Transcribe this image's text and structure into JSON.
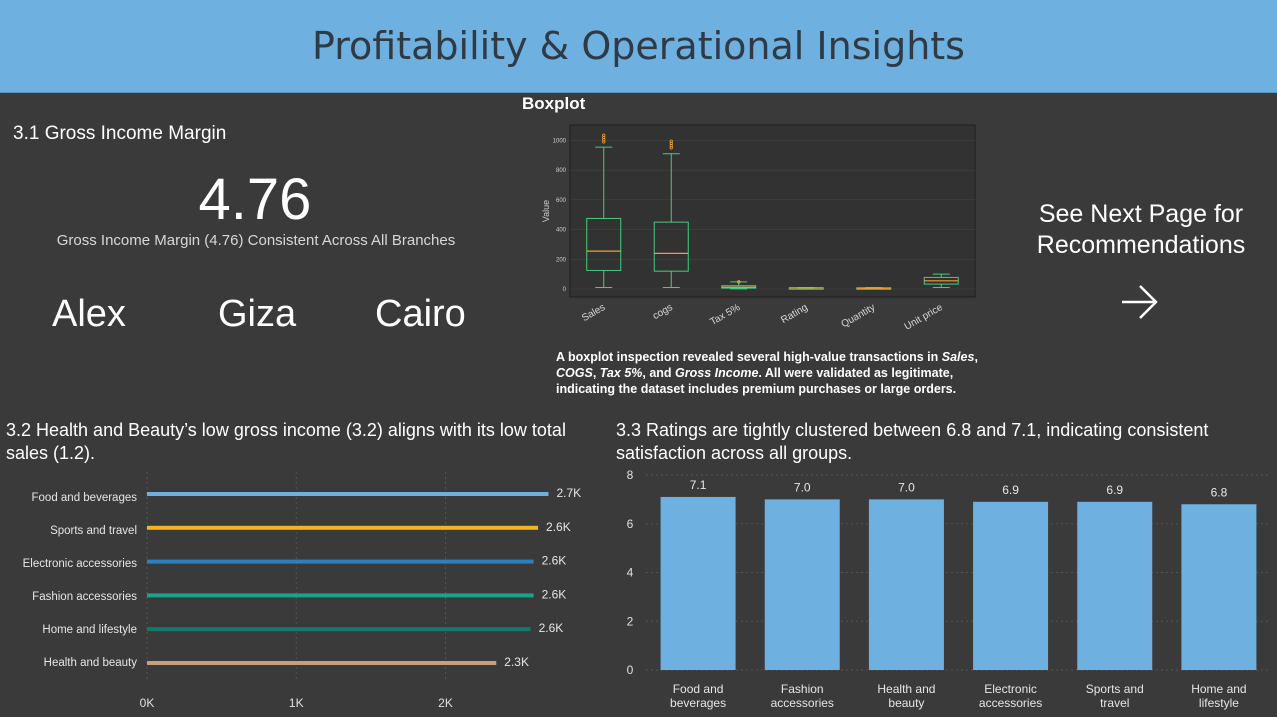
{
  "header": {
    "title": "Profitability & Operational Insights"
  },
  "section_31": {
    "title": "3.1 Gross Income Margin",
    "value": "4.76",
    "subtitle": "Gross Income Margin (4.76) Consistent Across All Branches",
    "branches": [
      "Alex",
      "Giza",
      "Cairo"
    ]
  },
  "boxplot": {
    "title": "Boxplot",
    "desc_1": "A boxplot inspection revealed several high-value transactions in ",
    "desc_sales": "Sales",
    "desc_2": ", ",
    "desc_cogs": "COGS",
    "desc_3": ", ",
    "desc_tax": "Tax 5%",
    "desc_4": ", and ",
    "desc_gi": "Gross Income",
    "desc_5": ". All were validated as legitimate, indicating the dataset includes premium purchases or large orders."
  },
  "next_page": {
    "label": "See Next Page for Recommendations",
    "icon": "arrow-right-icon"
  },
  "colors": {
    "header_bg": "#6eb0e0",
    "background": "#3a3a3a",
    "bar_blue": "#6eb0e0",
    "box_green": "#3fcf7f",
    "median_orange": "#f0a030"
  },
  "chart_data": [
    {
      "id": "boxplot",
      "type": "boxplot",
      "title": "Boxplot",
      "ylabel": "Value",
      "ylim": [
        0,
        1050
      ],
      "yticks": [
        0,
        200,
        400,
        600,
        800,
        1000
      ],
      "categories": [
        "Sales",
        "cogs",
        "Tax 5%",
        "Rating",
        "Quantity",
        "Unit price"
      ],
      "boxes": [
        {
          "min": 10,
          "q1": 125,
          "median": 255,
          "q3": 475,
          "max": 955,
          "outliers": [
            990,
            1005,
            1020,
            1035
          ]
        },
        {
          "min": 10,
          "q1": 120,
          "median": 240,
          "q3": 450,
          "max": 910,
          "outliers": [
            950,
            965,
            980,
            995
          ]
        },
        {
          "min": 1,
          "q1": 6,
          "median": 12,
          "q3": 22,
          "max": 48,
          "outliers": [
            47,
            49
          ]
        },
        {
          "min": 4,
          "q1": 5.5,
          "median": 7,
          "q3": 8.5,
          "max": 10,
          "outliers": []
        },
        {
          "min": 1,
          "q1": 3,
          "median": 5,
          "q3": 8,
          "max": 10,
          "outliers": []
        },
        {
          "min": 10,
          "q1": 33,
          "median": 55,
          "q3": 78,
          "max": 100,
          "outliers": []
        }
      ],
      "grid": true
    },
    {
      "id": "sales-by-product-line",
      "type": "bar",
      "orientation": "horizontal",
      "title": "3.2 Health and Beauty’s low gross income (3.2) aligns with its low total sales (1.2).",
      "categories": [
        "Food and beverages",
        "Sports and travel",
        "Electronic accessories",
        "Fashion accessories",
        "Home and lifestyle",
        "Health and beauty"
      ],
      "values": [
        2690,
        2620,
        2590,
        2590,
        2570,
        2340
      ],
      "labels": [
        "2.7K",
        "2.6K",
        "2.6K",
        "2.6K",
        "2.6K",
        "2.3K"
      ],
      "colors": [
        "#6eb0e0",
        "#f2b51d",
        "#2e7ec2",
        "#17a58a",
        "#0f7a6e",
        "#c4a07e"
      ],
      "xlim": [
        0,
        2700
      ],
      "xticks": [
        0,
        1000,
        2000
      ],
      "xtick_labels": [
        "0K",
        "1K",
        "2K"
      ],
      "grid": true
    },
    {
      "id": "rating-by-product-line",
      "type": "bar",
      "title": "3.3 Ratings are tightly clustered between 6.8 and 7.1, indicating consistent satisfaction across all groups.",
      "categories": [
        [
          "Food and",
          "beverages"
        ],
        [
          "Fashion",
          "accessories"
        ],
        [
          "Health and",
          "beauty"
        ],
        [
          "Electronic",
          "accessories"
        ],
        [
          "Sports and",
          "travel"
        ],
        [
          "Home and",
          "lifestyle"
        ]
      ],
      "values": [
        7.1,
        7.0,
        7.0,
        6.9,
        6.9,
        6.8
      ],
      "labels": [
        "7.1",
        "7.0",
        "7.0",
        "6.9",
        "6.9",
        "6.8"
      ],
      "ylim": [
        0,
        8
      ],
      "yticks": [
        0,
        2,
        4,
        6,
        8
      ],
      "grid": true
    }
  ]
}
